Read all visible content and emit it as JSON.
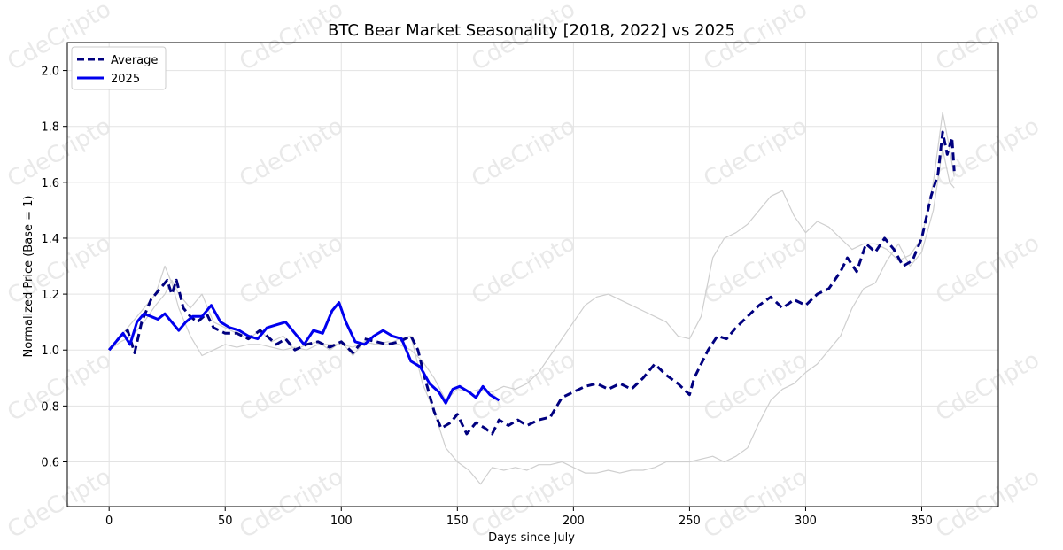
{
  "chart_data": {
    "type": "line",
    "title": "BTC Bear Market Seasonality [2018, 2022] vs 2025",
    "xlabel": "Days since July",
    "ylabel": "Normalized Price (Base = 1)",
    "xlim": [
      -18,
      383
    ],
    "ylim": [
      0.44,
      2.1
    ],
    "xticks": [
      0,
      50,
      100,
      150,
      200,
      250,
      300,
      350
    ],
    "yticks": [
      0.6,
      0.8,
      1.0,
      1.2,
      1.4,
      1.6,
      1.8,
      2.0
    ],
    "grid": true,
    "legend_position": "top-left",
    "watermark": "CdeCripto",
    "series": [
      {
        "name": "Average",
        "style": "dashed",
        "color": "#00007f",
        "x": [
          0,
          5,
          8,
          11,
          14,
          18,
          22,
          25,
          27,
          29,
          32,
          35,
          38,
          42,
          45,
          50,
          55,
          60,
          65,
          68,
          72,
          76,
          80,
          85,
          90,
          95,
          100,
          105,
          110,
          115,
          120,
          125,
          130,
          133,
          136,
          140,
          143,
          147,
          150,
          154,
          158,
          162,
          165,
          168,
          172,
          176,
          180,
          185,
          190,
          195,
          200,
          205,
          210,
          215,
          220,
          225,
          230,
          235,
          240,
          245,
          250,
          252,
          255,
          258,
          262,
          266,
          270,
          275,
          280,
          285,
          290,
          295,
          300,
          305,
          310,
          315,
          318,
          322,
          326,
          330,
          334,
          338,
          342,
          346,
          350,
          354,
          357,
          359,
          361,
          363,
          364
        ],
        "values": [
          1.0,
          1.05,
          1.07,
          0.99,
          1.1,
          1.18,
          1.22,
          1.25,
          1.2,
          1.25,
          1.15,
          1.12,
          1.1,
          1.13,
          1.08,
          1.06,
          1.06,
          1.04,
          1.07,
          1.05,
          1.02,
          1.04,
          1.0,
          1.02,
          1.03,
          1.01,
          1.03,
          0.99,
          1.04,
          1.03,
          1.02,
          1.03,
          1.05,
          1.0,
          0.9,
          0.78,
          0.72,
          0.74,
          0.77,
          0.7,
          0.74,
          0.72,
          0.7,
          0.75,
          0.73,
          0.75,
          0.73,
          0.75,
          0.76,
          0.83,
          0.85,
          0.87,
          0.88,
          0.86,
          0.88,
          0.86,
          0.9,
          0.95,
          0.91,
          0.88,
          0.84,
          0.9,
          0.95,
          1.0,
          1.05,
          1.04,
          1.08,
          1.12,
          1.16,
          1.19,
          1.15,
          1.18,
          1.16,
          1.2,
          1.22,
          1.28,
          1.33,
          1.28,
          1.38,
          1.35,
          1.4,
          1.36,
          1.3,
          1.32,
          1.4,
          1.55,
          1.63,
          1.78,
          1.7,
          1.76,
          1.64
        ]
      },
      {
        "name": "2025",
        "style": "solid",
        "color": "#0000ee",
        "x": [
          0,
          3,
          6,
          9,
          12,
          15,
          18,
          21,
          24,
          27,
          30,
          33,
          36,
          40,
          44,
          48,
          52,
          56,
          60,
          64,
          68,
          72,
          76,
          80,
          84,
          88,
          92,
          96,
          99,
          102,
          106,
          110,
          114,
          118,
          122,
          126,
          130,
          134,
          138,
          142,
          145,
          148,
          151,
          155,
          158,
          161,
          164,
          168
        ],
        "values": [
          1.0,
          1.03,
          1.06,
          1.02,
          1.1,
          1.13,
          1.12,
          1.11,
          1.13,
          1.1,
          1.07,
          1.1,
          1.12,
          1.12,
          1.16,
          1.1,
          1.08,
          1.07,
          1.05,
          1.04,
          1.08,
          1.09,
          1.1,
          1.06,
          1.02,
          1.07,
          1.06,
          1.14,
          1.17,
          1.1,
          1.03,
          1.02,
          1.05,
          1.07,
          1.05,
          1.04,
          0.96,
          0.94,
          0.88,
          0.85,
          0.81,
          0.86,
          0.87,
          0.85,
          0.83,
          0.87,
          0.84,
          0.82
        ]
      },
      {
        "name": "",
        "style": "thin",
        "color": "#cfcfcf",
        "x": [
          0,
          5,
          10,
          15,
          20,
          24,
          27,
          30,
          35,
          40,
          45,
          50,
          55,
          60,
          65,
          70,
          75,
          80,
          85,
          90,
          95,
          100,
          105,
          110,
          115,
          120,
          125,
          130,
          135,
          140,
          145,
          150,
          155,
          160,
          165,
          170,
          175,
          180,
          185,
          190,
          195,
          200,
          205,
          210,
          215,
          220,
          225,
          230,
          235,
          240,
          245,
          250,
          255,
          260,
          265,
          270,
          275,
          280,
          285,
          290,
          295,
          300,
          305,
          310,
          315,
          320,
          325,
          330,
          335,
          340,
          345,
          350,
          355,
          359,
          362,
          364
        ],
        "values": [
          1.0,
          1.05,
          1.1,
          1.15,
          1.2,
          1.3,
          1.24,
          1.15,
          1.05,
          0.98,
          1.0,
          1.02,
          1.01,
          1.02,
          1.02,
          1.01,
          1.0,
          1.01,
          1.0,
          1.02,
          1.02,
          1.02,
          1.01,
          1.03,
          1.02,
          1.03,
          1.02,
          1.0,
          0.96,
          0.9,
          0.82,
          0.86,
          0.85,
          0.86,
          0.85,
          0.87,
          0.86,
          0.88,
          0.92,
          0.98,
          1.04,
          1.1,
          1.16,
          1.19,
          1.2,
          1.18,
          1.16,
          1.14,
          1.12,
          1.1,
          1.05,
          1.04,
          1.12,
          1.33,
          1.4,
          1.42,
          1.45,
          1.5,
          1.55,
          1.57,
          1.48,
          1.42,
          1.46,
          1.44,
          1.4,
          1.36,
          1.38,
          1.38,
          1.36,
          1.32,
          1.34,
          1.4,
          1.6,
          1.85,
          1.72,
          1.62
        ]
      },
      {
        "name": "",
        "style": "thin",
        "color": "#cfcfcf",
        "x": [
          0,
          5,
          10,
          15,
          20,
          24,
          27,
          30,
          35,
          40,
          45,
          50,
          55,
          60,
          65,
          70,
          75,
          80,
          85,
          90,
          95,
          100,
          105,
          110,
          115,
          120,
          125,
          130,
          135,
          140,
          145,
          150,
          155,
          160,
          165,
          170,
          175,
          180,
          185,
          190,
          195,
          200,
          205,
          210,
          215,
          220,
          225,
          230,
          235,
          240,
          245,
          250,
          255,
          260,
          265,
          270,
          275,
          280,
          285,
          290,
          295,
          300,
          305,
          310,
          315,
          320,
          325,
          330,
          335,
          340,
          345,
          350,
          355,
          359,
          362,
          364
        ],
        "values": [
          1.0,
          1.03,
          1.05,
          1.1,
          1.16,
          1.2,
          1.25,
          1.2,
          1.15,
          1.2,
          1.1,
          1.08,
          1.06,
          1.04,
          1.07,
          1.03,
          1.05,
          1.0,
          1.02,
          1.03,
          1.0,
          1.03,
          0.98,
          1.03,
          1.02,
          1.02,
          1.04,
          1.05,
          0.88,
          0.78,
          0.65,
          0.6,
          0.57,
          0.52,
          0.58,
          0.57,
          0.58,
          0.57,
          0.59,
          0.59,
          0.6,
          0.58,
          0.56,
          0.56,
          0.57,
          0.56,
          0.57,
          0.57,
          0.58,
          0.6,
          0.6,
          0.6,
          0.61,
          0.62,
          0.6,
          0.62,
          0.65,
          0.74,
          0.82,
          0.86,
          0.88,
          0.92,
          0.95,
          1.0,
          1.05,
          1.15,
          1.22,
          1.24,
          1.32,
          1.38,
          1.3,
          1.35,
          1.5,
          1.72,
          1.6,
          1.58
        ]
      }
    ]
  }
}
